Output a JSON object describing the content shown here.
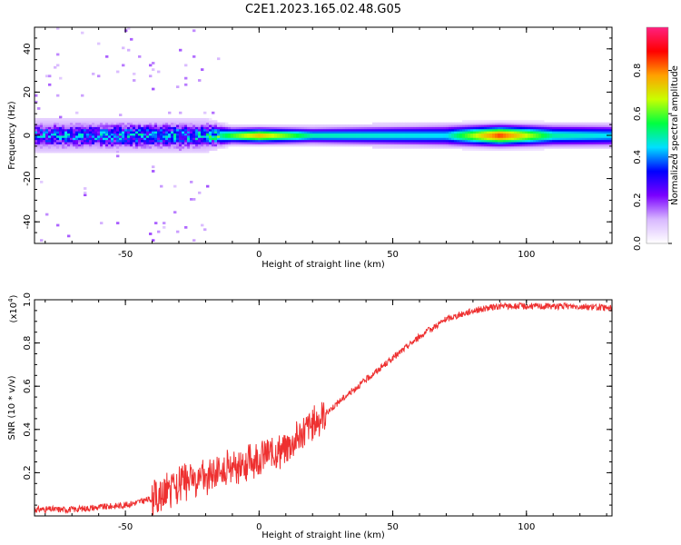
{
  "title": "C2E1.2023.165.02.48.G05",
  "chart_data": [
    {
      "type": "heatmap",
      "xlabel": "Height of straight line (km)",
      "ylabel": "Frequency (Hz)",
      "xlim": [
        -84,
        132
      ],
      "ylim": [
        -50,
        50
      ],
      "xticks": [
        -50,
        0,
        50,
        100
      ],
      "yticks": [
        -40,
        -20,
        0,
        20,
        40
      ],
      "colorbar": {
        "label": "Normalized spectral amplitude",
        "range": [
          0,
          1
        ],
        "ticks": [
          "0.0",
          "0.2",
          "0.4",
          "0.6",
          "0.8"
        ],
        "colors": [
          "#ffffff",
          "#d8b8ff",
          "#7a00ff",
          "#0000ff",
          "#00e0ff",
          "#00ff40",
          "#c8ff00",
          "#ffa000",
          "#ff0000",
          "#ff2080"
        ]
      },
      "band": {
        "center_hz": 0,
        "profile": [
          {
            "x": -84,
            "halfwidth_hz": 5,
            "peak": 0.35
          },
          {
            "x": -20,
            "halfwidth_hz": 5,
            "peak": 0.4
          },
          {
            "x": -10,
            "halfwidth_hz": 3,
            "peak": 0.6
          },
          {
            "x": 0,
            "halfwidth_hz": 3,
            "peak": 0.75
          },
          {
            "x": 20,
            "halfwidth_hz": 3,
            "peak": 0.5
          },
          {
            "x": 70,
            "halfwidth_hz": 4,
            "peak": 0.45
          },
          {
            "x": 90,
            "halfwidth_hz": 4,
            "peak": 0.85
          },
          {
            "x": 110,
            "halfwidth_hz": 4,
            "peak": 0.5
          },
          {
            "x": 132,
            "halfwidth_hz": 4,
            "peak": 0.45
          }
        ]
      }
    },
    {
      "type": "line",
      "xlabel": "Height of straight line (km)",
      "ylabel": "SNR (10 * v/v)",
      "y_multiplier": "(x10",
      "y_multiplier_exp": "4",
      "y_multiplier_close": ")",
      "xlim": [
        -84,
        132
      ],
      "ylim": [
        0,
        1.0
      ],
      "xticks": [
        -50,
        0,
        50,
        100
      ],
      "yticks": [
        0.2,
        0.4,
        0.6,
        0.8,
        1.0
      ],
      "ytick_labels": [
        "0.2",
        "0.4",
        "0.6",
        "0.8",
        "1.0"
      ],
      "color": "#ee3030",
      "series": [
        {
          "x": [
            -84,
            -70,
            -60,
            -50,
            -40,
            -30,
            -20,
            -10,
            0,
            10,
            20,
            30,
            40,
            50,
            60,
            70,
            80,
            90,
            100,
            110,
            120,
            132
          ],
          "y": [
            0.03,
            0.03,
            0.04,
            0.05,
            0.08,
            0.14,
            0.17,
            0.22,
            0.27,
            0.31,
            0.42,
            0.53,
            0.63,
            0.73,
            0.83,
            0.91,
            0.95,
            0.97,
            0.97,
            0.97,
            0.97,
            0.96
          ]
        }
      ]
    }
  ]
}
